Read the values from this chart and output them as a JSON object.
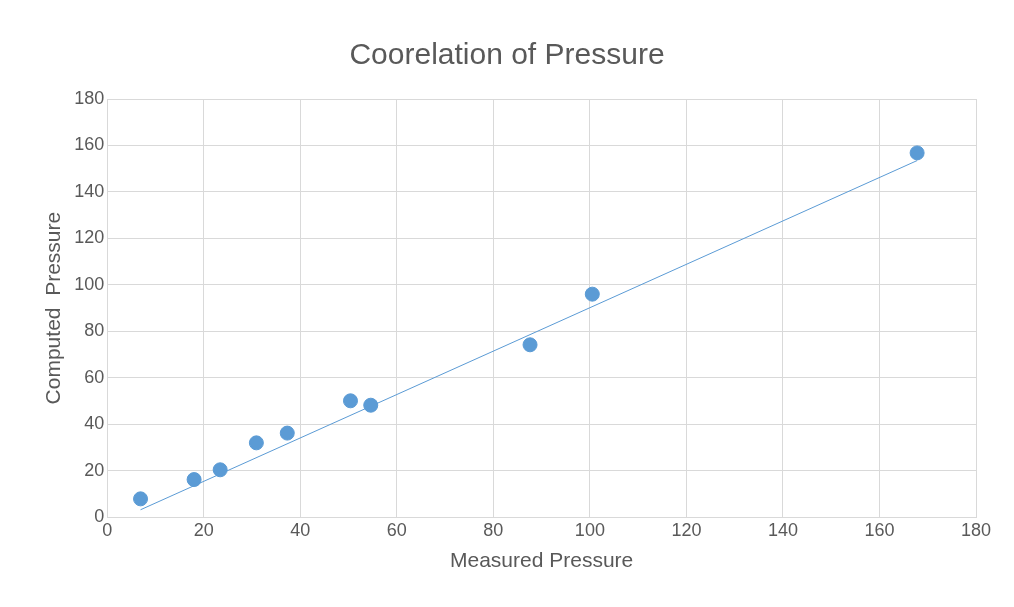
{
  "chart_data": {
    "type": "scatter",
    "title": "Coorelation of Pressure",
    "xlabel": "Measured Pressure",
    "ylabel": "Computed  Pressure",
    "x": [
      6.9,
      18.0,
      23.4,
      30.9,
      37.3,
      50.4,
      54.6,
      87.6,
      100.5,
      167.8
    ],
    "series": [
      {
        "type": "scatter",
        "color": "#5b9bd5",
        "values": [
          7.9,
          16.2,
          20.4,
          32.0,
          36.2,
          50.1,
          48.2,
          74.2,
          96.0,
          156.8
        ],
        "marker": "circle"
      },
      {
        "type": "line",
        "color": "#5b9bd5",
        "x": [
          6.9,
          167.8
        ],
        "values": [
          3.2,
          153.5
        ],
        "marker": "none",
        "line_style": "solid"
      }
    ],
    "xlim": [
      0,
      180
    ],
    "xticks": [
      0,
      20,
      40,
      60,
      80,
      100,
      120,
      140,
      160,
      180
    ],
    "ylim": [
      0,
      180
    ],
    "yticks": [
      0,
      20,
      40,
      60,
      80,
      100,
      120,
      140,
      160,
      180
    ],
    "grid": true,
    "legend": false
  }
}
